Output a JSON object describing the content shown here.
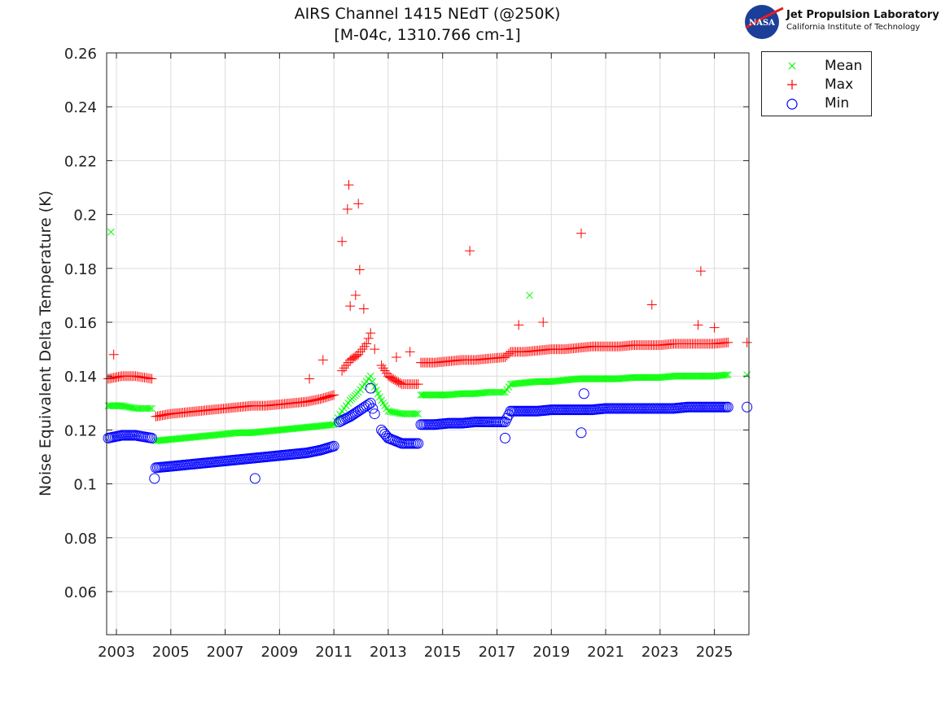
{
  "title_line1": "AIRS Channel 1415 NEdT (@250K)",
  "title_line2": "[M-04c, 1310.766 cm-1]",
  "logo": {
    "org": "Jet Propulsion Laboratory",
    "sub": "California Institute of Technology",
    "badge": "NASA"
  },
  "chart_data": {
    "type": "scatter",
    "title": "AIRS Channel 1415 NEdT (@250K) [M-04c, 1310.766 cm-1]",
    "xlabel": "",
    "ylabel": "Noise Equivalent Delta Temperature (K)",
    "xlim": [
      2002.64,
      2026.27
    ],
    "ylim": [
      0.044,
      0.26
    ],
    "xticks": [
      2003,
      2005,
      2007,
      2009,
      2011,
      2013,
      2015,
      2017,
      2019,
      2021,
      2023,
      2025
    ],
    "yticks": [
      0.06,
      0.08,
      0.1,
      0.12,
      0.14,
      0.16,
      0.18,
      0.2,
      0.22,
      0.24,
      0.26
    ],
    "ytick_labels": [
      "0.06",
      "0.08",
      "0.1",
      "0.12",
      "0.14",
      "0.16",
      "0.18",
      "0.2",
      "0.22",
      "0.24",
      "0.26"
    ],
    "grid": true,
    "legend_position": "outside-top-right",
    "series": [
      {
        "name": "Mean",
        "marker": "x",
        "color": "#00ff00",
        "points": [
          [
            2002.7,
            0.129
          ],
          [
            2003.2,
            0.129
          ],
          [
            2003.7,
            0.128
          ],
          [
            2004.3,
            0.128
          ],
          [
            2004.45,
            0.116
          ],
          [
            2005,
            0.1165
          ],
          [
            2005.5,
            0.117
          ],
          [
            2006,
            0.1175
          ],
          [
            2006.5,
            0.118
          ],
          [
            2007,
            0.1185
          ],
          [
            2007.5,
            0.119
          ],
          [
            2008,
            0.119
          ],
          [
            2008.5,
            0.1195
          ],
          [
            2009,
            0.12
          ],
          [
            2009.5,
            0.1205
          ],
          [
            2010,
            0.121
          ],
          [
            2010.5,
            0.1215
          ],
          [
            2011,
            0.122
          ],
          [
            2011.3,
            0.127
          ],
          [
            2011.6,
            0.131
          ],
          [
            2011.9,
            0.134
          ],
          [
            2012.2,
            0.138
          ],
          [
            2012.35,
            0.14
          ],
          [
            2012.5,
            0.136
          ],
          [
            2012.75,
            0.131
          ],
          [
            2013,
            0.127
          ],
          [
            2013.5,
            0.126
          ],
          [
            2014.1,
            0.126
          ],
          [
            2014.2,
            0.133
          ],
          [
            2014.7,
            0.133
          ],
          [
            2015.2,
            0.133
          ],
          [
            2015.7,
            0.1335
          ],
          [
            2016.2,
            0.1335
          ],
          [
            2016.7,
            0.134
          ],
          [
            2017.3,
            0.134
          ],
          [
            2017.5,
            0.137
          ],
          [
            2018,
            0.1375
          ],
          [
            2018.5,
            0.138
          ],
          [
            2019,
            0.138
          ],
          [
            2019.5,
            0.1385
          ],
          [
            2020,
            0.139
          ],
          [
            2020.5,
            0.139
          ],
          [
            2021,
            0.139
          ],
          [
            2021.5,
            0.139
          ],
          [
            2022,
            0.1395
          ],
          [
            2022.5,
            0.1395
          ],
          [
            2023,
            0.1395
          ],
          [
            2023.5,
            0.14
          ],
          [
            2024,
            0.14
          ],
          [
            2024.5,
            0.14
          ],
          [
            2025,
            0.14
          ],
          [
            2025.5,
            0.1405
          ],
          [
            2026.2,
            0.1405
          ]
        ],
        "outliers": [
          [
            2002.8,
            0.1935
          ],
          [
            2018.2,
            0.17
          ]
        ]
      },
      {
        "name": "Max",
        "marker": "+",
        "color": "#ff0000",
        "points": [
          [
            2002.7,
            0.139
          ],
          [
            2003.2,
            0.14
          ],
          [
            2003.7,
            0.14
          ],
          [
            2004.3,
            0.139
          ],
          [
            2004.45,
            0.125
          ],
          [
            2005,
            0.126
          ],
          [
            2005.5,
            0.1265
          ],
          [
            2006,
            0.127
          ],
          [
            2006.5,
            0.1275
          ],
          [
            2007,
            0.128
          ],
          [
            2007.5,
            0.1285
          ],
          [
            2008,
            0.129
          ],
          [
            2008.5,
            0.129
          ],
          [
            2009,
            0.1295
          ],
          [
            2009.5,
            0.13
          ],
          [
            2010,
            0.1305
          ],
          [
            2010.5,
            0.1315
          ],
          [
            2011,
            0.133
          ],
          [
            2011.3,
            0.142
          ],
          [
            2011.6,
            0.146
          ],
          [
            2011.9,
            0.148
          ],
          [
            2012.2,
            0.152
          ],
          [
            2012.35,
            0.156
          ],
          [
            2012.5,
            0.15
          ],
          [
            2012.75,
            0.144
          ],
          [
            2013,
            0.14
          ],
          [
            2013.5,
            0.137
          ],
          [
            2014.1,
            0.137
          ],
          [
            2014.2,
            0.145
          ],
          [
            2014.7,
            0.145
          ],
          [
            2015.2,
            0.1455
          ],
          [
            2015.7,
            0.146
          ],
          [
            2016.2,
            0.146
          ],
          [
            2016.7,
            0.1465
          ],
          [
            2017.3,
            0.147
          ],
          [
            2017.5,
            0.149
          ],
          [
            2018,
            0.149
          ],
          [
            2018.5,
            0.1495
          ],
          [
            2019,
            0.15
          ],
          [
            2019.5,
            0.15
          ],
          [
            2020,
            0.1505
          ],
          [
            2020.5,
            0.151
          ],
          [
            2021,
            0.151
          ],
          [
            2021.5,
            0.151
          ],
          [
            2022,
            0.1515
          ],
          [
            2022.5,
            0.1515
          ],
          [
            2023,
            0.1515
          ],
          [
            2023.5,
            0.152
          ],
          [
            2024,
            0.152
          ],
          [
            2024.5,
            0.152
          ],
          [
            2025,
            0.152
          ],
          [
            2025.5,
            0.1525
          ],
          [
            2026.2,
            0.1525
          ]
        ],
        "outliers": [
          [
            2002.9,
            0.148
          ],
          [
            2010.1,
            0.139
          ],
          [
            2010.6,
            0.146
          ],
          [
            2011.3,
            0.19
          ],
          [
            2011.5,
            0.202
          ],
          [
            2011.55,
            0.211
          ],
          [
            2011.6,
            0.166
          ],
          [
            2011.8,
            0.17
          ],
          [
            2011.9,
            0.204
          ],
          [
            2011.95,
            0.1795
          ],
          [
            2012.1,
            0.165
          ],
          [
            2013.3,
            0.147
          ],
          [
            2013.8,
            0.149
          ],
          [
            2016.0,
            0.1865
          ],
          [
            2017.8,
            0.159
          ],
          [
            2018.7,
            0.16
          ],
          [
            2020.1,
            0.193
          ],
          [
            2022.7,
            0.1665
          ],
          [
            2024.4,
            0.159
          ],
          [
            2024.5,
            0.179
          ],
          [
            2025.0,
            0.158
          ]
        ]
      },
      {
        "name": "Min",
        "marker": "o",
        "color": "#0000ff",
        "points": [
          [
            2002.7,
            0.117
          ],
          [
            2003.2,
            0.118
          ],
          [
            2003.7,
            0.118
          ],
          [
            2004.3,
            0.117
          ],
          [
            2004.45,
            0.106
          ],
          [
            2005,
            0.1065
          ],
          [
            2005.5,
            0.107
          ],
          [
            2006,
            0.1075
          ],
          [
            2006.5,
            0.108
          ],
          [
            2007,
            0.1085
          ],
          [
            2007.5,
            0.109
          ],
          [
            2008,
            0.1095
          ],
          [
            2008.5,
            0.11
          ],
          [
            2009,
            0.1105
          ],
          [
            2009.5,
            0.111
          ],
          [
            2010,
            0.1115
          ],
          [
            2010.5,
            0.1125
          ],
          [
            2011,
            0.114
          ],
          [
            2011.2,
            0.123
          ],
          [
            2011.6,
            0.125
          ],
          [
            2011.9,
            0.127
          ],
          [
            2012.2,
            0.129
          ],
          [
            2012.35,
            0.13
          ],
          [
            2012.5,
            0.126
          ],
          [
            2012.75,
            0.12
          ],
          [
            2013,
            0.117
          ],
          [
            2013.5,
            0.115
          ],
          [
            2014.1,
            0.115
          ],
          [
            2014.2,
            0.122
          ],
          [
            2014.7,
            0.122
          ],
          [
            2015.2,
            0.1225
          ],
          [
            2015.7,
            0.1225
          ],
          [
            2016.2,
            0.123
          ],
          [
            2016.7,
            0.123
          ],
          [
            2017.3,
            0.123
          ],
          [
            2017.5,
            0.127
          ],
          [
            2018,
            0.127
          ],
          [
            2018.5,
            0.127
          ],
          [
            2019,
            0.1275
          ],
          [
            2019.5,
            0.1275
          ],
          [
            2020,
            0.1275
          ],
          [
            2020.5,
            0.1275
          ],
          [
            2021,
            0.128
          ],
          [
            2021.5,
            0.128
          ],
          [
            2022,
            0.128
          ],
          [
            2022.5,
            0.128
          ],
          [
            2023,
            0.128
          ],
          [
            2023.5,
            0.128
          ],
          [
            2024,
            0.1285
          ],
          [
            2024.5,
            0.1285
          ],
          [
            2025,
            0.1285
          ],
          [
            2025.5,
            0.1285
          ],
          [
            2026.2,
            0.1285
          ]
        ],
        "outliers": [
          [
            2012.35,
            0.1355
          ],
          [
            2020.1,
            0.119
          ],
          [
            2020.2,
            0.1335
          ],
          [
            2004.4,
            0.102
          ],
          [
            2008.1,
            0.102
          ],
          [
            2017.3,
            0.117
          ]
        ]
      }
    ]
  }
}
